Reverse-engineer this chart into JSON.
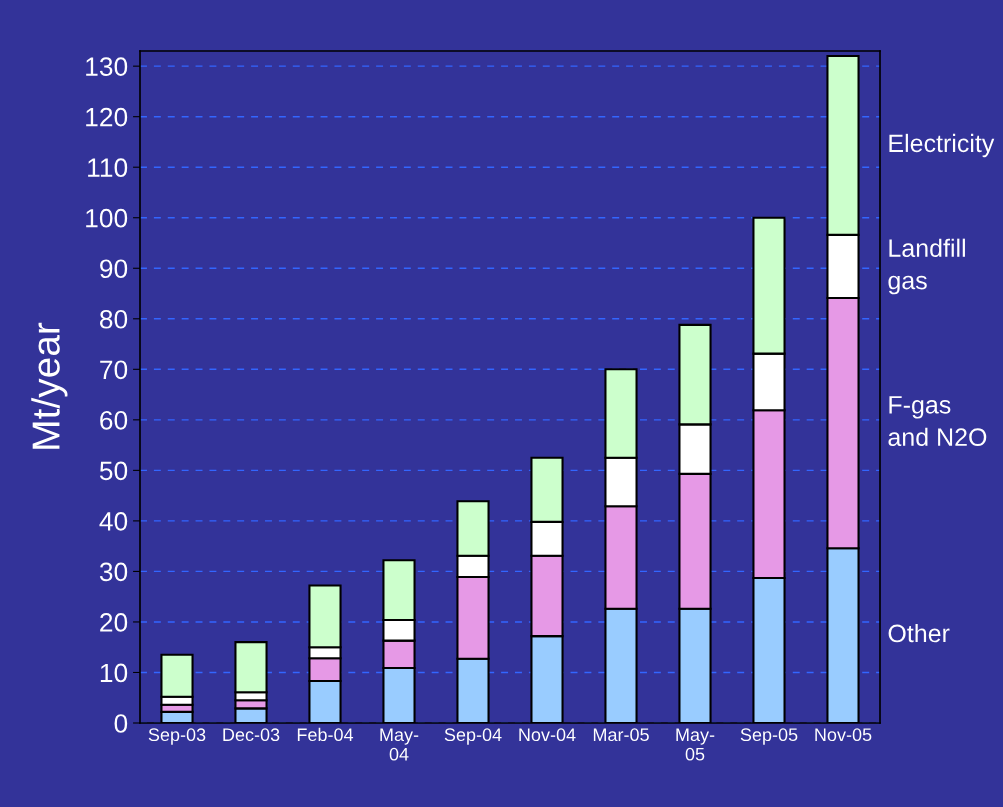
{
  "chart_data": {
    "type": "bar",
    "stacked": true,
    "ylabel": "Mt/year",
    "categories": [
      "Sep-03",
      "Dec-03",
      "Feb-04",
      "May-\n04",
      "Sep-04",
      "Nov-04",
      "Mar-05",
      "May-\n05",
      "Sep-05",
      "Nov-05"
    ],
    "series": [
      {
        "name": "Other",
        "color": "#99ccff",
        "values": [
          2.2,
          2.9,
          8.3,
          10.9,
          12.7,
          17.2,
          22.6,
          22.6,
          28.7,
          34.6
        ]
      },
      {
        "name": "F-gas\nand N2O",
        "color": "#e699e6",
        "values": [
          1.4,
          1.6,
          4.5,
          5.4,
          16.2,
          15.9,
          20.3,
          26.7,
          33.2,
          49.5
        ]
      },
      {
        "name": "Landfill\ngas",
        "color": "#ffffff",
        "values": [
          1.6,
          1.6,
          2.2,
          4.1,
          4.2,
          6.7,
          9.6,
          9.8,
          11.2,
          12.5
        ]
      },
      {
        "name": "Electricity",
        "color": "#ccffcc",
        "values": [
          8.3,
          9.9,
          12.2,
          11.8,
          10.8,
          12.7,
          17.5,
          19.7,
          26.9,
          35.4
        ]
      }
    ],
    "ylim": [
      0,
      133
    ],
    "yticks": [
      0,
      10,
      20,
      30,
      40,
      50,
      60,
      70,
      80,
      90,
      100,
      110,
      120,
      130
    ],
    "grid": "y"
  }
}
